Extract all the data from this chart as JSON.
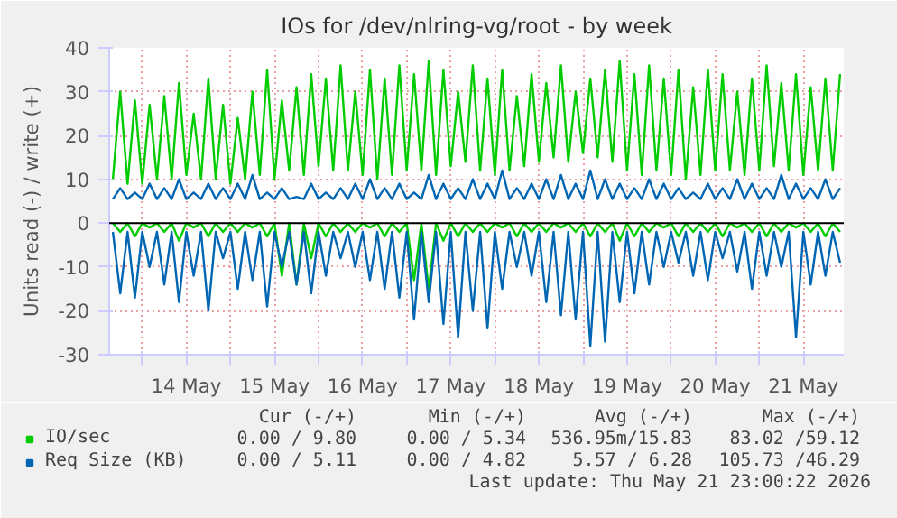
{
  "chart_data": {
    "type": "line",
    "title": "IOs for /dev/nlring-vg/root - by week",
    "ylabel": "Units read (-) / write (+)",
    "x": [
      "2026-05-13T16:00",
      "2026-05-13T18:00",
      "2026-05-13T20:00",
      "2026-05-13T22:00",
      "2026-05-14T00:00",
      "2026-05-14T02:00",
      "2026-05-14T04:00",
      "2026-05-14T06:00",
      "2026-05-14T08:00",
      "2026-05-14T10:00",
      "2026-05-14T12:00",
      "2026-05-14T14:00",
      "2026-05-14T16:00",
      "2026-05-14T18:00",
      "2026-05-14T20:00",
      "2026-05-14T22:00",
      "2026-05-15T00:00",
      "2026-05-15T02:00",
      "2026-05-15T04:00",
      "2026-05-15T06:00",
      "2026-05-15T08:00",
      "2026-05-15T10:00",
      "2026-05-15T12:00",
      "2026-05-15T14:00",
      "2026-05-15T16:00",
      "2026-05-15T18:00",
      "2026-05-15T20:00",
      "2026-05-15T22:00",
      "2026-05-16T00:00",
      "2026-05-16T02:00",
      "2026-05-16T04:00",
      "2026-05-16T06:00",
      "2026-05-16T08:00",
      "2026-05-16T10:00",
      "2026-05-16T12:00",
      "2026-05-16T14:00",
      "2026-05-16T16:00",
      "2026-05-16T18:00",
      "2026-05-16T20:00",
      "2026-05-16T22:00",
      "2026-05-17T00:00",
      "2026-05-17T02:00",
      "2026-05-17T04:00",
      "2026-05-17T06:00",
      "2026-05-17T08:00",
      "2026-05-17T10:00",
      "2026-05-17T12:00",
      "2026-05-17T14:00",
      "2026-05-17T16:00",
      "2026-05-17T18:00",
      "2026-05-17T20:00",
      "2026-05-17T22:00",
      "2026-05-18T00:00",
      "2026-05-18T02:00",
      "2026-05-18T04:00",
      "2026-05-18T06:00",
      "2026-05-18T08:00",
      "2026-05-18T10:00",
      "2026-05-18T12:00",
      "2026-05-18T14:00",
      "2026-05-18T16:00",
      "2026-05-18T18:00",
      "2026-05-18T20:00",
      "2026-05-18T22:00",
      "2026-05-19T00:00",
      "2026-05-19T02:00",
      "2026-05-19T04:00",
      "2026-05-19T06:00",
      "2026-05-19T08:00",
      "2026-05-19T10:00",
      "2026-05-19T12:00",
      "2026-05-19T14:00",
      "2026-05-19T16:00",
      "2026-05-19T18:00",
      "2026-05-19T20:00",
      "2026-05-19T22:00",
      "2026-05-20T00:00",
      "2026-05-20T02:00",
      "2026-05-20T04:00",
      "2026-05-20T06:00",
      "2026-05-20T08:00",
      "2026-05-20T10:00",
      "2026-05-20T12:00",
      "2026-05-20T14:00",
      "2026-05-20T16:00",
      "2026-05-20T18:00",
      "2026-05-20T20:00",
      "2026-05-20T22:00",
      "2026-05-21T00:00",
      "2026-05-21T02:00",
      "2026-05-21T04:00",
      "2026-05-21T06:00",
      "2026-05-21T08:00",
      "2026-05-21T10:00",
      "2026-05-21T12:00",
      "2026-05-21T14:00",
      "2026-05-21T16:00",
      "2026-05-21T18:00",
      "2026-05-21T20:00",
      "2026-05-21T22:00"
    ],
    "series": [
      {
        "color": "#00cc00",
        "values": [
          0,
          -2,
          0,
          -3,
          0,
          -1,
          0,
          -2,
          0,
          -4,
          0,
          -1,
          0,
          -3,
          0,
          -2,
          0,
          -2,
          0,
          -1,
          0,
          -3,
          0,
          -12,
          0,
          -14,
          0,
          -8,
          0,
          -3,
          0,
          -2,
          0,
          -2,
          0,
          -1,
          0,
          -3,
          0,
          -2,
          0,
          -13,
          0,
          -15,
          0,
          -4,
          0,
          -3,
          0,
          -2,
          0,
          -2,
          0,
          -1,
          0,
          -3,
          0,
          -2,
          0,
          -2,
          0,
          -1,
          0,
          -2,
          0,
          -3,
          0,
          -2,
          0,
          -4,
          0,
          -3,
          0,
          -2,
          0,
          -1,
          0,
          -3,
          0,
          -2,
          0,
          -2,
          0,
          -3,
          0,
          -1,
          0,
          -2,
          0,
          -3,
          0,
          -2,
          0,
          -1,
          0,
          -2,
          0,
          -3,
          0,
          -2
        ]
      },
      {
        "name": "IO/sec",
        "color": "#00cc00",
        "values": [
          10,
          30,
          9,
          28,
          9,
          27,
          10,
          29,
          10,
          32,
          11,
          25,
          10,
          33,
          10,
          27,
          9,
          24,
          10,
          30,
          11,
          35,
          10,
          28,
          12,
          31,
          11,
          34,
          13,
          33,
          12,
          36,
          12,
          30,
          11,
          35,
          10,
          33,
          11,
          36,
          12,
          34,
          12,
          37,
          11,
          35,
          13,
          30,
          14,
          36,
          12,
          33,
          11,
          35,
          12,
          29,
          13,
          34,
          14,
          32,
          15,
          36,
          14,
          30,
          16,
          33,
          15,
          35,
          14,
          37,
          12,
          34,
          11,
          36,
          12,
          33,
          11,
          35,
          10,
          31,
          11,
          35,
          12,
          34,
          12,
          30,
          11,
          33,
          12,
          36,
          13,
          32,
          12,
          34,
          11,
          31,
          12,
          33,
          12,
          34
        ]
      },
      {
        "color": "#0066b3",
        "values": [
          -2,
          -16,
          -2,
          -17,
          -2,
          -10,
          -2,
          -14,
          -2,
          -18,
          -2,
          -12,
          -2,
          -20,
          -2,
          -8,
          -2,
          -15,
          -2,
          -13,
          -2,
          -19,
          -2,
          -10,
          -2,
          -14,
          -2,
          -16,
          -2,
          -12,
          -2,
          -8,
          -2,
          -10,
          -2,
          -13,
          -2,
          -15,
          -2,
          -17,
          -2,
          -22,
          -2,
          -18,
          -2,
          -23,
          -2,
          -26,
          -2,
          -20,
          -2,
          -24,
          -2,
          -15,
          -2,
          -10,
          -2,
          -12,
          -2,
          -18,
          -2,
          -21,
          -2,
          -22,
          -2,
          -28,
          -2,
          -27,
          -2,
          -18,
          -2,
          -16,
          -2,
          -14,
          -2,
          -10,
          -2,
          -9,
          -2,
          -12,
          -2,
          -13,
          -2,
          -8,
          -2,
          -11,
          -2,
          -15,
          -2,
          -12,
          -2,
          -10,
          -2,
          -26,
          -2,
          -14,
          -2,
          -12,
          -2,
          -9
        ]
      },
      {
        "name": "Req Size (KB)",
        "color": "#0066b3",
        "values": [
          5.5,
          8,
          5.5,
          7,
          5.5,
          9,
          5.5,
          8,
          5.5,
          10,
          5.5,
          7,
          5.5,
          9,
          5.5,
          8,
          5.5,
          9,
          5.5,
          11,
          5.5,
          7,
          5.5,
          8,
          5.5,
          6,
          5.5,
          9,
          5.5,
          7,
          5.5,
          8,
          5.5,
          9,
          5.5,
          10,
          5.5,
          8,
          5.5,
          9,
          5.5,
          7,
          5.5,
          11,
          5.5,
          9,
          5.5,
          8,
          5.5,
          10,
          5.5,
          9,
          5.5,
          12,
          5.5,
          8,
          5.5,
          9,
          5.5,
          10,
          5.5,
          11,
          5.5,
          9,
          5.5,
          12,
          5.5,
          10,
          5.5,
          9,
          5.5,
          8,
          5.5,
          10,
          5.5,
          9,
          5.5,
          8,
          5.5,
          7,
          5.5,
          9,
          5.5,
          8,
          5.5,
          10,
          5.5,
          9,
          5.5,
          8,
          5.5,
          11,
          5.5,
          9,
          5.5,
          8,
          5.5,
          10,
          5.5,
          8
        ]
      }
    ],
    "xlim": [
      "2026-05-13T15:00",
      "2026-05-21T23:00"
    ],
    "xticks": [
      {
        "value": "2026-05-14T00:00",
        "label": null
      },
      {
        "value": "2026-05-14T12:00",
        "label": "14 May"
      },
      {
        "value": "2026-05-15T00:00",
        "label": null
      },
      {
        "value": "2026-05-15T12:00",
        "label": "15 May"
      },
      {
        "value": "2026-05-16T00:00",
        "label": null
      },
      {
        "value": "2026-05-16T12:00",
        "label": "16 May"
      },
      {
        "value": "2026-05-17T00:00",
        "label": null
      },
      {
        "value": "2026-05-17T12:00",
        "label": "17 May"
      },
      {
        "value": "2026-05-18T00:00",
        "label": null
      },
      {
        "value": "2026-05-18T12:00",
        "label": "18 May"
      },
      {
        "value": "2026-05-19T00:00",
        "label": null
      },
      {
        "value": "2026-05-19T12:00",
        "label": "19 May"
      },
      {
        "value": "2026-05-20T00:00",
        "label": null
      },
      {
        "value": "2026-05-20T12:00",
        "label": "20 May"
      },
      {
        "value": "2026-05-21T00:00",
        "label": null
      },
      {
        "value": "2026-05-21T12:00",
        "label": "21 May"
      }
    ],
    "ylim": [
      -30,
      40
    ],
    "yticks": [
      -30,
      -20,
      -10,
      0,
      10,
      20,
      30,
      40
    ],
    "grid": true,
    "legend": "bottom left",
    "marker": "none",
    "line_style": "solid",
    "ref_lines": [
      {
        "axis": "y",
        "value": 0,
        "color": "#000000"
      }
    ],
    "annotations": [
      "Cur (-/+)",
      "Min (-/+)",
      "Avg (-/+)",
      "Max (-/+)",
      "0.00 / 9.80",
      "0.00 / 5.34",
      "536.95m/15.83",
      "83.02 /59.12",
      "0.00 / 5.11",
      "0.00 / 4.82",
      "5.57 / 6.28",
      "105.73 /46.29",
      "Last update: Thu May 21 23:00:22 2026"
    ]
  }
}
